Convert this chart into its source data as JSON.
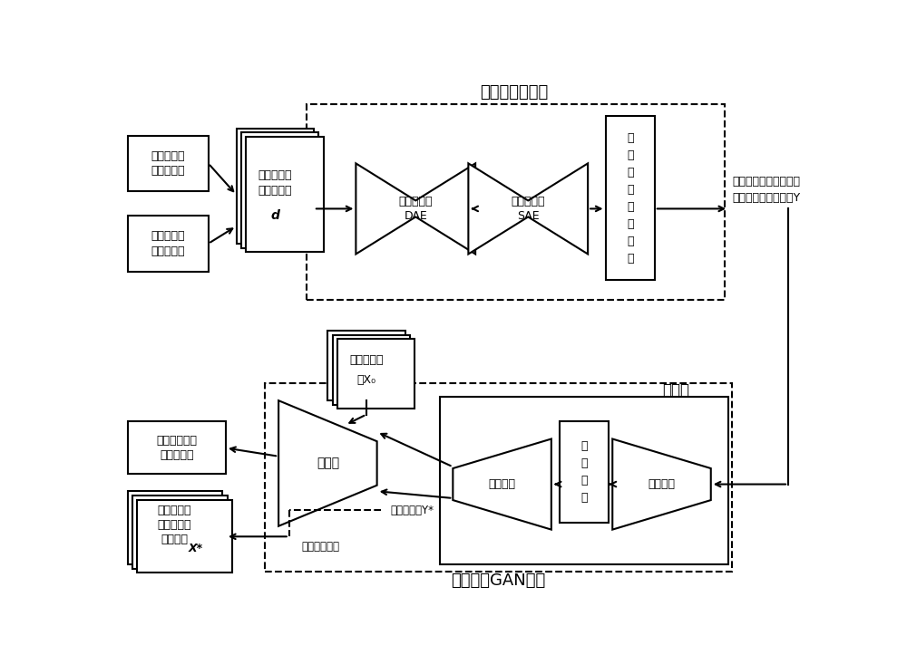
{
  "bg_color": "#ffffff",
  "top_label": "数据预处理模块",
  "bot_label": "瓶颈残差GAN模块",
  "gen_label": "生成器",
  "real_box": "真实荧光光\n强测量数据",
  "sim_box": "仿真荧光光\n强测量数据",
  "mixed_line1": "混合的荧光",
  "mixed_line2": "光强数据集",
  "mixed_italic": "d",
  "dae_text": "降噪自编码\nDAE",
  "sae_text": "稀疏自编码\nSAE",
  "linear_text": "线\n性\n映\n射\n网\n络\n模\n块",
  "y_label_line1": "反映荧光蛋白探针浓度",
  "y_label_line2": "及分布的预处理数据",
  "y_italic": "Y",
  "phantom_line1": "凝胶仿体数",
  "phantom_line2": "据",
  "phantom_sub": "X₀",
  "discriminator_text": "判别器",
  "decoder_text": "解码部分",
  "fc_text": "全\n连\n接\n层",
  "encoder_text": "编码部分",
  "penalty_text": "带惩罚项的交\n叉熵损失值",
  "reconstructed_line1": "重建的荧光",
  "reconstructed_line2": "蛋白探针浓",
  "reconstructed_line3": "度及分布",
  "reconstructed_italic": "X*",
  "gen_output_label": "生成器输出Y*",
  "final_output_label": "最终输出结果"
}
